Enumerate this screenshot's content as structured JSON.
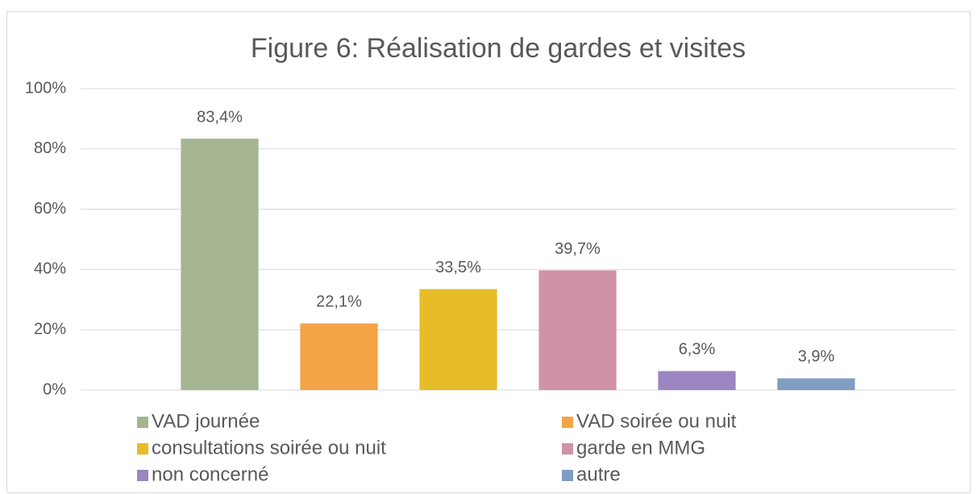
{
  "chart_data": {
    "type": "bar",
    "title": "Figure 6: Réalisation de gardes et visites",
    "categories": [
      null
    ],
    "series": [
      {
        "name": "VAD journée",
        "color": "#a5b592",
        "values": [
          83.4
        ],
        "value_labels": [
          "83,4%"
        ]
      },
      {
        "name": "VAD soirée ou nuit",
        "color": "#f3a447",
        "values": [
          22.1
        ],
        "value_labels": [
          "22,1%"
        ]
      },
      {
        "name": "consultations soirée ou nuit",
        "color": "#e7bc29",
        "values": [
          33.5
        ],
        "value_labels": [
          "33,5%"
        ]
      },
      {
        "name": "garde en MMG",
        "color": "#d092a7",
        "values": [
          39.7
        ],
        "value_labels": [
          "39,7%"
        ]
      },
      {
        "name": "non concerné",
        "color": "#9c85c0",
        "values": [
          6.3
        ],
        "value_labels": [
          "6,3%"
        ]
      },
      {
        "name": "autre",
        "color": "#809ec2",
        "values": [
          3.9
        ],
        "value_labels": [
          "3,9%"
        ]
      }
    ],
    "ylim": [
      0,
      100
    ],
    "yticks": [
      {
        "value": 0,
        "label": "0%"
      },
      {
        "value": 20,
        "label": "20%"
      },
      {
        "value": 40,
        "label": "40%"
      },
      {
        "value": 60,
        "label": "60%"
      },
      {
        "value": 80,
        "label": "80%"
      },
      {
        "value": 100,
        "label": "100%"
      }
    ],
    "grid": true,
    "legend": "bottom"
  }
}
